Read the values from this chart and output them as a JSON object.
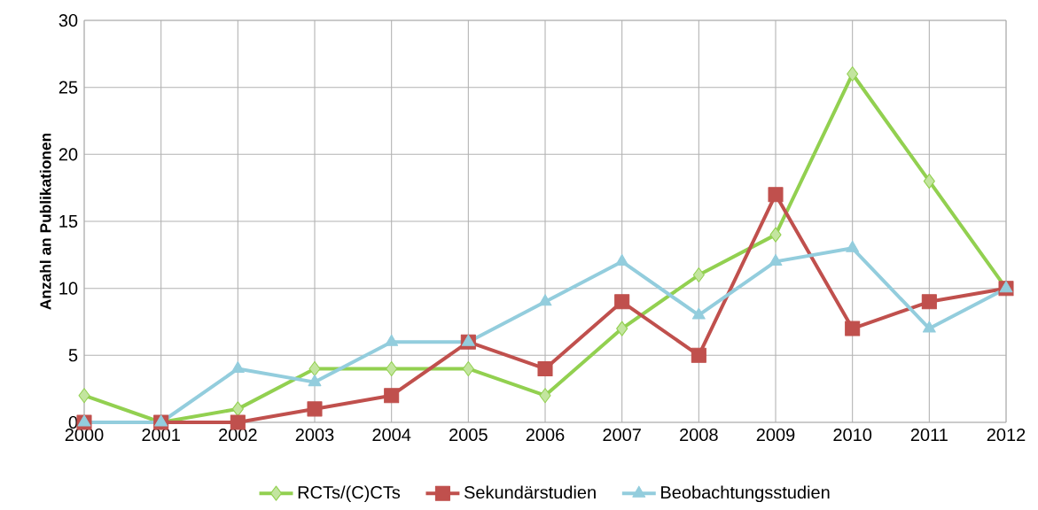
{
  "chart_data": {
    "type": "line",
    "ylabel": "Anzahl an Publikationen",
    "categories": [
      "2000",
      "2001",
      "2002",
      "2003",
      "2004",
      "2005",
      "2006",
      "2007",
      "2008",
      "2009",
      "2010",
      "2011",
      "2012"
    ],
    "series": [
      {
        "name": "RCTs/(C)CTs",
        "color": "#92d050",
        "marker": "diamond",
        "values": [
          2,
          0,
          1,
          4,
          4,
          4,
          2,
          7,
          11,
          14,
          26,
          18,
          10
        ]
      },
      {
        "name": "Sekundärstudien",
        "color": "#c0504d",
        "marker": "square",
        "values": [
          0,
          0,
          0,
          1,
          2,
          6,
          4,
          9,
          5,
          17,
          7,
          9,
          10
        ]
      },
      {
        "name": "Beobachtungsstudien",
        "color": "#93cddd",
        "marker": "triangle",
        "values": [
          0,
          0,
          4,
          3,
          6,
          6,
          9,
          12,
          8,
          12,
          13,
          7,
          10
        ]
      }
    ],
    "ylim": [
      0,
      30
    ],
    "yticks": [
      0,
      5,
      10,
      15,
      20,
      25,
      30
    ],
    "grid": true,
    "legend": "bottom",
    "line_style": "solid"
  }
}
